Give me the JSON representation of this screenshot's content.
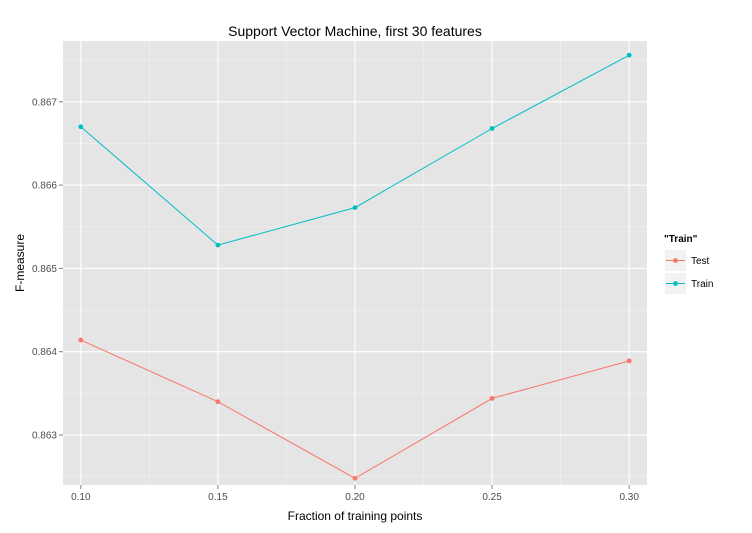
{
  "chart_data": {
    "type": "line",
    "title": "Support Vector Machine, first 30 features",
    "xlabel": "Fraction of training points",
    "ylabel": "F-measure",
    "x": [
      0.1,
      0.15,
      0.2,
      0.25,
      0.3
    ],
    "x_tick_labels": [
      "0.10",
      "0.15",
      "0.20",
      "0.25",
      "0.30"
    ],
    "y_tick_values": [
      0.863,
      0.864,
      0.865,
      0.866,
      0.867
    ],
    "y_tick_labels": [
      "0.863",
      "0.864",
      "0.865",
      "0.866",
      "0.867"
    ],
    "xlim": [
      0.0935,
      0.3065
    ],
    "ylim": [
      0.8624,
      0.86773
    ],
    "grid": true,
    "background": "#e5e5e5",
    "legend": {
      "title": "\"Train\"",
      "position": "right"
    },
    "series": [
      {
        "name": "Test",
        "color": "#f8766d",
        "values": [
          0.86414,
          0.8634,
          0.86248,
          0.86344,
          0.86389
        ]
      },
      {
        "name": "Train",
        "color": "#00bfc4",
        "values": [
          0.8667,
          0.86528,
          0.86573,
          0.86668,
          0.86756
        ]
      }
    ]
  }
}
